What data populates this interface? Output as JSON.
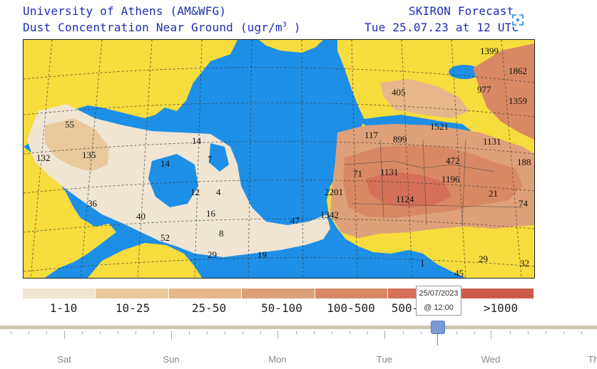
{
  "header": {
    "line1_left": "University of Athens (AM&WFG)",
    "line2_left": "Dust Concentration Near Ground (ugr/m",
    "line2_left_sup": "3",
    "line2_left_close": ")",
    "line1_right": "SKIRON Forecast",
    "line2_right": "Tue 25.07.23 at 12 UTC"
  },
  "map": {
    "ocean_color": "#1e8fe6",
    "land_color": "#f6dc3c",
    "labels": [
      {
        "text": "55"
      },
      {
        "text": "132"
      },
      {
        "text": "135"
      },
      {
        "text": "14"
      },
      {
        "text": "14"
      },
      {
        "text": "7"
      },
      {
        "text": "12"
      },
      {
        "text": "4"
      },
      {
        "text": "36"
      },
      {
        "text": "40"
      },
      {
        "text": "16"
      },
      {
        "text": "8"
      },
      {
        "text": "52"
      },
      {
        "text": "29"
      },
      {
        "text": "19"
      },
      {
        "text": "47"
      },
      {
        "text": "1342"
      },
      {
        "text": "2201"
      },
      {
        "text": "71"
      },
      {
        "text": "1131"
      },
      {
        "text": "1124"
      },
      {
        "text": "1196"
      },
      {
        "text": "472"
      },
      {
        "text": "899"
      },
      {
        "text": "117"
      },
      {
        "text": "1521"
      },
      {
        "text": "405"
      },
      {
        "text": "977"
      },
      {
        "text": "1399"
      },
      {
        "text": "1862"
      },
      {
        "text": "1359"
      },
      {
        "text": "1131"
      },
      {
        "text": "188"
      },
      {
        "text": "21"
      },
      {
        "text": "74"
      },
      {
        "text": "29"
      },
      {
        "text": "32"
      },
      {
        "text": "45"
      },
      {
        "text": "1"
      }
    ]
  },
  "legend": {
    "colors": [
      "#f0e4d2",
      "#e9c99c",
      "#e6b78a",
      "#dea07a",
      "#d98866",
      "#d4705a",
      "#cc5a4a"
    ],
    "labels": [
      "1-10",
      "10-25",
      "25-50",
      "50-100",
      "100-500",
      "500-",
      "1000",
      ">1000"
    ]
  },
  "timeline": {
    "days": [
      "Sat",
      "Sun",
      "Mon",
      "Tue",
      "Wed",
      "Th"
    ],
    "tooltip_date": "25/07/2023",
    "tooltip_time": "@ 12:00"
  },
  "icons": {
    "fullscreen": "expand-icon"
  }
}
